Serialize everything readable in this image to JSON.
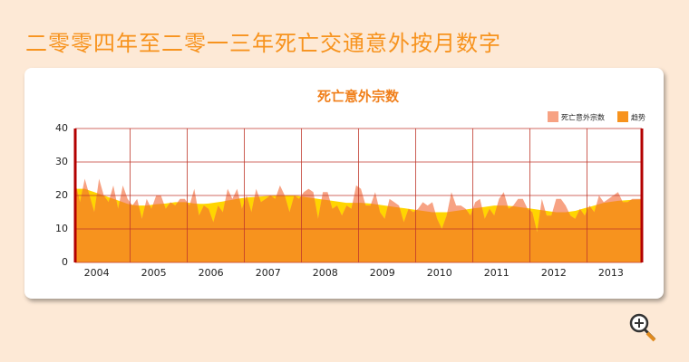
{
  "page_title": "二零零四年至二零一三年死亡交通意外按月数字",
  "chart_data": {
    "type": "area",
    "title": "死亡意外宗数",
    "categories": [
      null,
      null,
      null,
      null,
      null,
      "2004",
      null,
      null,
      null,
      null,
      null,
      null,
      null,
      null,
      null,
      null,
      null,
      "2005",
      null,
      null,
      null,
      null,
      null,
      null,
      null,
      null,
      null,
      null,
      null,
      "2006",
      null,
      null,
      null,
      null,
      null,
      null,
      null,
      null,
      null,
      null,
      null,
      "2007",
      null,
      null,
      null,
      null,
      null,
      null,
      null,
      null,
      null,
      null,
      null,
      "2008",
      null,
      null,
      null,
      null,
      null,
      null,
      null,
      null,
      null,
      null,
      null,
      "2009",
      null,
      null,
      null,
      null,
      null,
      null,
      null,
      null,
      null,
      null,
      null,
      "2010",
      null,
      null,
      null,
      null,
      null,
      null,
      null,
      null,
      null,
      null,
      null,
      "2011",
      null,
      null,
      null,
      null,
      null,
      null,
      null,
      null,
      null,
      null,
      null,
      "2012",
      null,
      null,
      null,
      null,
      null,
      null,
      null,
      null,
      null,
      null,
      null,
      "2013",
      null,
      null,
      null,
      null,
      null,
      null
    ],
    "series": [
      {
        "name": "死亡意外宗数",
        "color": "#f7a283",
        "values": [
          24,
          18,
          25,
          20,
          15,
          25,
          20,
          18,
          23,
          16,
          23,
          19,
          17,
          19,
          13,
          19,
          16,
          20,
          20,
          16,
          18,
          17,
          19,
          19,
          17,
          22,
          14,
          17,
          16,
          12,
          17,
          15,
          22,
          19,
          22,
          16,
          20,
          15,
          22,
          18,
          19,
          20,
          19,
          23,
          20,
          15,
          20,
          19,
          21,
          22,
          21,
          13,
          21,
          21,
          16,
          17,
          14,
          17,
          16,
          23,
          22,
          17,
          17,
          21,
          15,
          13,
          19,
          18,
          17,
          12,
          16,
          15,
          16,
          18,
          17,
          18,
          13,
          10,
          14,
          21,
          17,
          17,
          16,
          14,
          18,
          19,
          13,
          16,
          14,
          19,
          21,
          16,
          17,
          19,
          19,
          16,
          15,
          9,
          19,
          14,
          14,
          19,
          19,
          17,
          14,
          13,
          16,
          14,
          17,
          15,
          20,
          18,
          19,
          20,
          21,
          18,
          18,
          19,
          19,
          19
        ]
      },
      {
        "name": "趋势",
        "color": "#f7931e",
        "values": [
          22,
          22,
          22,
          21.5,
          21,
          20.5,
          20,
          19.5,
          19,
          18.5,
          18,
          17.5,
          17.2,
          17,
          17,
          17,
          17.2,
          17.4,
          17.5,
          17.6,
          17.8,
          18,
          18,
          18,
          17.8,
          17.6,
          17.5,
          17.5,
          17.6,
          17.8,
          18,
          18.2,
          18.5,
          18.7,
          19,
          19.2,
          19.4,
          19.5,
          19.6,
          19.7,
          19.8,
          19.9,
          20,
          20,
          20,
          20,
          20,
          19.8,
          19.6,
          19.4,
          19.2,
          19,
          18.8,
          18.6,
          18.4,
          18.2,
          18,
          17.8,
          17.8,
          17.8,
          17.8,
          17.7,
          17.6,
          17.4,
          17.2,
          17,
          16.8,
          16.6,
          16.4,
          16.2,
          16,
          15.8,
          15.6,
          15.4,
          15.2,
          15,
          15,
          15,
          15,
          15.2,
          15.4,
          15.6,
          15.8,
          16,
          16.2,
          16.4,
          16.6,
          16.8,
          17,
          17,
          17,
          16.9,
          16.8,
          16.6,
          16.4,
          16.2,
          16,
          15.8,
          15.6,
          15.4,
          15.2,
          15,
          15,
          15,
          15.2,
          15.4,
          15.8,
          16.2,
          16.6,
          17,
          17.4,
          17.8,
          18,
          18.2,
          18.4,
          18.5,
          18.6,
          18.7,
          18.8,
          18.8
        ]
      }
    ],
    "ylim": [
      0,
      40
    ],
    "yticks": [
      0,
      10,
      20,
      30,
      40
    ],
    "grid": true,
    "legend": "top-right"
  }
}
